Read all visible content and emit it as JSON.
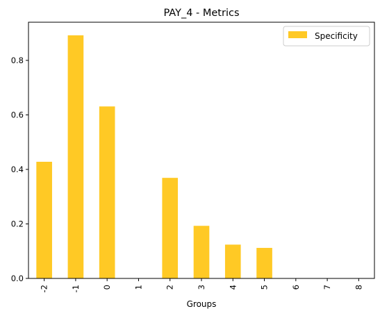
{
  "chart_data": {
    "type": "bar",
    "title": "PAY_4 - Metrics",
    "xlabel": "Groups",
    "ylabel": "",
    "categories": [
      "-2",
      "-1",
      "0",
      "1",
      "2",
      "3",
      "4",
      "5",
      "6",
      "7",
      "8"
    ],
    "series": [
      {
        "name": "Specificity",
        "color": "#FFC925",
        "values": [
          0.428,
          0.892,
          0.631,
          0.0,
          0.369,
          0.193,
          0.124,
          0.112,
          0.0,
          0.0,
          0.0
        ]
      }
    ],
    "ylim": [
      0,
      0.94
    ],
    "yticks": [
      "0.0",
      "0.2",
      "0.4",
      "0.6",
      "0.8"
    ],
    "ytick_values": [
      0.0,
      0.2,
      0.4,
      0.6,
      0.8
    ],
    "grid": false,
    "legend_position": "top-right"
  }
}
